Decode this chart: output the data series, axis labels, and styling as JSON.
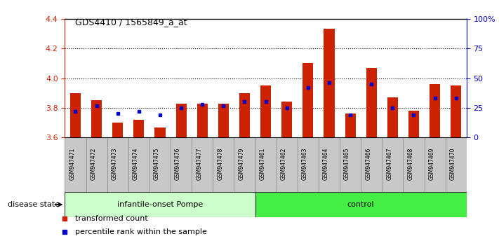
{
  "title": "GDS4410 / 1565849_a_at",
  "samples": [
    "GSM947471",
    "GSM947472",
    "GSM947473",
    "GSM947474",
    "GSM947475",
    "GSM947476",
    "GSM947477",
    "GSM947478",
    "GSM947479",
    "GSM947461",
    "GSM947462",
    "GSM947463",
    "GSM947464",
    "GSM947465",
    "GSM947466",
    "GSM947467",
    "GSM947468",
    "GSM947469",
    "GSM947470"
  ],
  "transformed_count": [
    3.9,
    3.85,
    3.7,
    3.72,
    3.67,
    3.83,
    3.83,
    3.83,
    3.9,
    3.95,
    3.84,
    4.1,
    4.33,
    3.76,
    4.07,
    3.87,
    3.78,
    3.96,
    3.95
  ],
  "percentile_rank": [
    0.22,
    0.27,
    0.2,
    0.22,
    0.19,
    0.25,
    0.28,
    0.27,
    0.3,
    0.3,
    0.25,
    0.42,
    0.46,
    0.19,
    0.45,
    0.25,
    0.19,
    0.33,
    0.33
  ],
  "groups": [
    "infantile-onset Pompe",
    "infantile-onset Pompe",
    "infantile-onset Pompe",
    "infantile-onset Pompe",
    "infantile-onset Pompe",
    "infantile-onset Pompe",
    "infantile-onset Pompe",
    "infantile-onset Pompe",
    "infantile-onset Pompe",
    "control",
    "control",
    "control",
    "control",
    "control",
    "control",
    "control",
    "control",
    "control",
    "control"
  ],
  "ylim": [
    3.6,
    4.4
  ],
  "yticks": [
    3.6,
    3.8,
    4.0,
    4.2,
    4.4
  ],
  "right_yticks": [
    0,
    25,
    50,
    75,
    100
  ],
  "bar_color": "#CC2200",
  "dot_color": "#0000CC",
  "base_value": 3.6,
  "bg_color": "#FFFFFF",
  "sample_bg": "#C8C8C8",
  "label_color_left": "#CC2200",
  "label_color_right": "#0000CC",
  "disease_label": "disease state",
  "group_color_pompe": "#CCFFCC",
  "group_color_control": "#44EE44",
  "legend_items": [
    {
      "label": "transformed count",
      "color": "#CC2200"
    },
    {
      "label": "percentile rank within the sample",
      "color": "#0000CC"
    }
  ]
}
